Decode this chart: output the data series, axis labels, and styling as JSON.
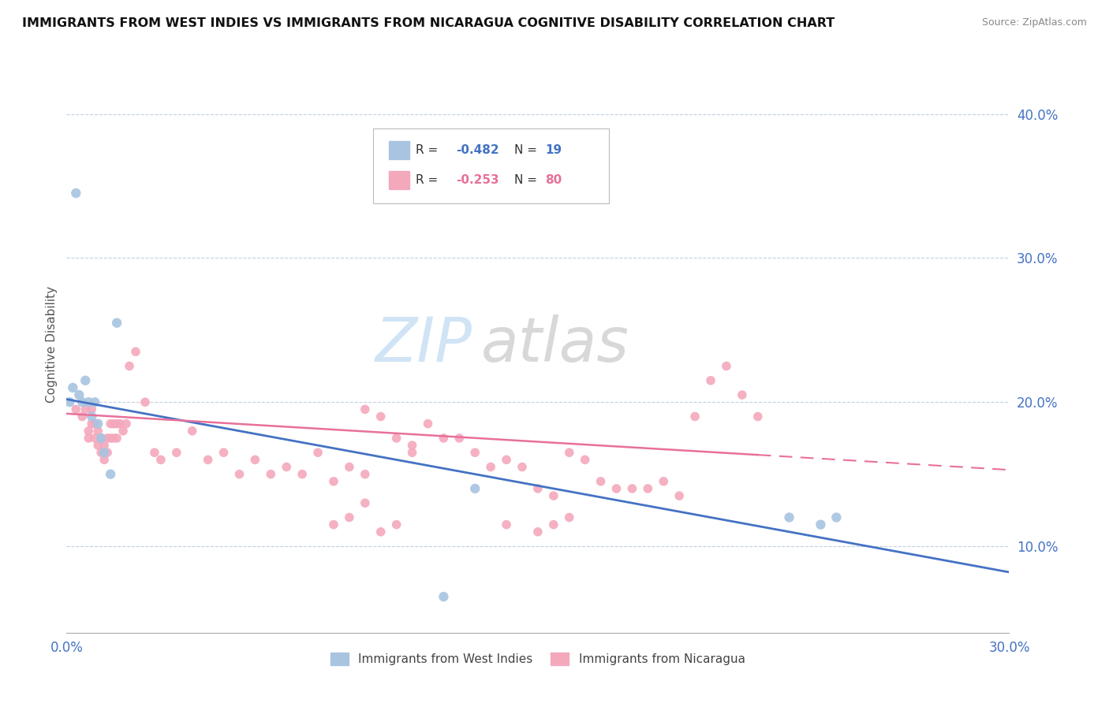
{
  "title": "IMMIGRANTS FROM WEST INDIES VS IMMIGRANTS FROM NICARAGUA COGNITIVE DISABILITY CORRELATION CHART",
  "source": "Source: ZipAtlas.com",
  "ylabel": "Cognitive Disability",
  "yticks": [
    0.1,
    0.2,
    0.3,
    0.4
  ],
  "ytick_labels": [
    "10.0%",
    "20.0%",
    "30.0%",
    "40.0%"
  ],
  "xlim": [
    0.0,
    0.3
  ],
  "ylim": [
    0.04,
    0.44
  ],
  "west_indies_R": -0.482,
  "west_indies_N": 19,
  "nicaragua_R": -0.253,
  "nicaragua_N": 80,
  "west_indies_color": "#a8c4e0",
  "nicaragua_color": "#f4a8bc",
  "west_indies_line_color": "#4472c4",
  "nicaragua_line_color": "#e8709a",
  "legend_text_color": "#4472c4",
  "watermark_zip_color": "#d0e4f5",
  "watermark_atlas_color": "#d8d8d8",
  "west_indies_x": [
    0.001,
    0.002,
    0.003,
    0.004,
    0.005,
    0.006,
    0.007,
    0.008,
    0.009,
    0.01,
    0.011,
    0.012,
    0.014,
    0.016,
    0.23,
    0.24,
    0.245,
    0.12,
    0.13
  ],
  "west_indies_y": [
    0.2,
    0.21,
    0.345,
    0.205,
    0.2,
    0.215,
    0.2,
    0.19,
    0.2,
    0.185,
    0.175,
    0.165,
    0.15,
    0.255,
    0.12,
    0.115,
    0.12,
    0.065,
    0.14
  ],
  "nicaragua_x": [
    0.003,
    0.005,
    0.006,
    0.007,
    0.007,
    0.008,
    0.008,
    0.009,
    0.009,
    0.01,
    0.01,
    0.011,
    0.011,
    0.012,
    0.012,
    0.013,
    0.013,
    0.014,
    0.014,
    0.015,
    0.015,
    0.016,
    0.016,
    0.017,
    0.018,
    0.019,
    0.02,
    0.022,
    0.025,
    0.028,
    0.03,
    0.035,
    0.04,
    0.045,
    0.05,
    0.055,
    0.06,
    0.065,
    0.07,
    0.075,
    0.08,
    0.085,
    0.09,
    0.095,
    0.1,
    0.11,
    0.115,
    0.12,
    0.125,
    0.13,
    0.135,
    0.14,
    0.145,
    0.15,
    0.155,
    0.16,
    0.165,
    0.17,
    0.175,
    0.18,
    0.185,
    0.19,
    0.195,
    0.2,
    0.205,
    0.21,
    0.215,
    0.22,
    0.14,
    0.15,
    0.155,
    0.16,
    0.105,
    0.11,
    0.085,
    0.09,
    0.095,
    0.095,
    0.1,
    0.105
  ],
  "nicaragua_y": [
    0.195,
    0.19,
    0.195,
    0.18,
    0.175,
    0.195,
    0.185,
    0.185,
    0.175,
    0.18,
    0.17,
    0.175,
    0.165,
    0.17,
    0.16,
    0.175,
    0.165,
    0.185,
    0.175,
    0.185,
    0.175,
    0.185,
    0.175,
    0.185,
    0.18,
    0.185,
    0.225,
    0.235,
    0.2,
    0.165,
    0.16,
    0.165,
    0.18,
    0.16,
    0.165,
    0.15,
    0.16,
    0.15,
    0.155,
    0.15,
    0.165,
    0.145,
    0.155,
    0.15,
    0.19,
    0.165,
    0.185,
    0.175,
    0.175,
    0.165,
    0.155,
    0.16,
    0.155,
    0.14,
    0.135,
    0.165,
    0.16,
    0.145,
    0.14,
    0.14,
    0.14,
    0.145,
    0.135,
    0.19,
    0.215,
    0.225,
    0.205,
    0.19,
    0.115,
    0.11,
    0.115,
    0.12,
    0.175,
    0.17,
    0.115,
    0.12,
    0.195,
    0.13,
    0.11,
    0.115
  ],
  "wi_line_x0": 0.0,
  "wi_line_y0": 0.202,
  "wi_line_x1": 0.3,
  "wi_line_y1": 0.082,
  "nic_line_x0": 0.0,
  "nic_line_y0": 0.192,
  "nic_line_x1": 0.3,
  "nic_line_y1": 0.153
}
